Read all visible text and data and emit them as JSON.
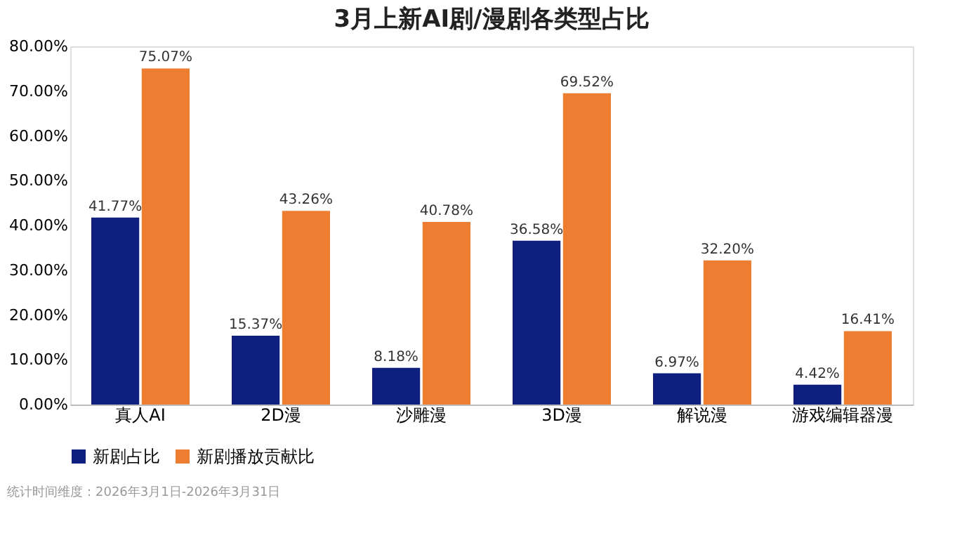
{
  "chart_data": {
    "type": "bar",
    "title": "3月上新AI剧/漫剧各类型占比",
    "categories": [
      "真人AI",
      "2D漫",
      "沙雕漫",
      "3D漫",
      "解说漫",
      "游戏编辑器漫"
    ],
    "series": [
      {
        "name": "新剧占比",
        "color": "#0e1f7f",
        "values": [
          41.77,
          15.37,
          8.18,
          36.58,
          6.97,
          4.42
        ],
        "value_labels": [
          "41.77%",
          "15.37%",
          "8.18%",
          "36.58%",
          "6.97%",
          "4.42%"
        ]
      },
      {
        "name": "新剧播放贡献比",
        "color": "#ed7d31",
        "values": [
          75.07,
          43.26,
          40.78,
          69.52,
          32.2,
          16.41
        ],
        "value_labels": [
          "75.07%",
          "43.26%",
          "40.78%",
          "69.52%",
          "32.20%",
          "16.41%"
        ]
      }
    ],
    "ylim": [
      0,
      80
    ],
    "yticks": [
      {
        "value": 0,
        "label": "0.00%"
      },
      {
        "value": 10,
        "label": "10.00%"
      },
      {
        "value": 20,
        "label": "20.00%"
      },
      {
        "value": 30,
        "label": "30.00%"
      },
      {
        "value": 40,
        "label": "40.00%"
      },
      {
        "value": 50,
        "label": "50.00%"
      },
      {
        "value": 60,
        "label": "60.00%"
      },
      {
        "value": 70,
        "label": "70.00%"
      },
      {
        "value": 80,
        "label": "80.00%"
      }
    ],
    "legend": "bottom",
    "grid": false,
    "annotations": [
      "统计时间维度：2026年3月1日-2026年3月31日"
    ]
  }
}
